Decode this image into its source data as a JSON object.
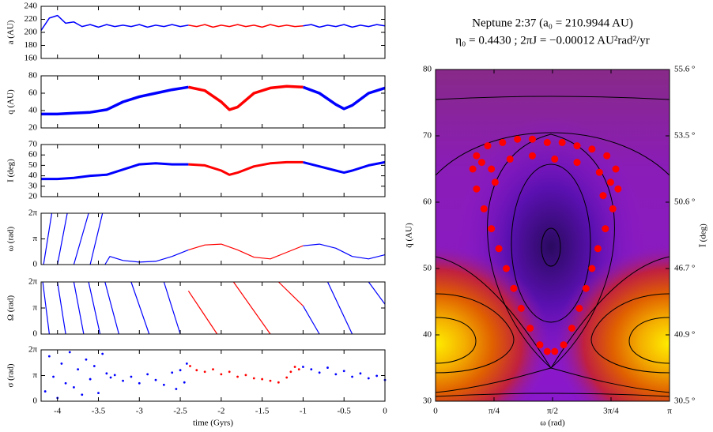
{
  "chart_data": [
    {
      "type": "line",
      "ylabel": "a (AU)",
      "xlim": [
        -4.2,
        0
      ],
      "xticks": [
        -4,
        -3.5,
        -3,
        -2.5,
        -2,
        -1.5,
        -1,
        -0.5,
        0
      ],
      "ylim": [
        160,
        240
      ],
      "yticks": [
        160,
        180,
        200,
        220,
        240
      ],
      "line_width": 1.5,
      "series": [
        {
          "color": "#0000ff",
          "x": [
            -4.2,
            -4.1,
            -4,
            -3.9,
            -3.8,
            -3.7,
            -3.6,
            -3.5,
            -3.4,
            -3.3,
            -3.2,
            -3.1,
            -3,
            -2.9,
            -2.8,
            -2.7,
            -2.6,
            -2.5,
            -2.4,
            -1.7,
            -1,
            -0.9,
            -0.8,
            -0.7,
            -0.6,
            -0.5,
            -0.4,
            -0.3,
            -0.2,
            -0.1,
            0
          ],
          "values": [
            203,
            222,
            226,
            214,
            216,
            209,
            212,
            208,
            212,
            209,
            211,
            209,
            212,
            208,
            211,
            209,
            212,
            209,
            211,
            null,
            210,
            212,
            208,
            211,
            209,
            212,
            208,
            211,
            209,
            212,
            210
          ]
        },
        {
          "color": "#ff0000",
          "x": [
            -2.4,
            -2.3,
            -2.2,
            -2.1,
            -2,
            -1.9,
            -1.8,
            -1.7,
            -1.6,
            -1.5,
            -1.4,
            -1.3,
            -1.2,
            -1.1,
            -1
          ],
          "values": [
            211,
            209,
            212,
            208,
            211,
            209,
            212,
            209,
            211,
            208,
            212,
            209,
            211,
            209,
            210
          ]
        }
      ]
    },
    {
      "type": "line",
      "ylabel": "q (AU)",
      "xlim": [
        -4.2,
        0
      ],
      "xticks": [
        -4,
        -3.5,
        -3,
        -2.5,
        -2,
        -1.5,
        -1,
        -0.5,
        0
      ],
      "ylim": [
        20,
        80
      ],
      "yticks": [
        20,
        40,
        60,
        80
      ],
      "line_width": 3.5,
      "series": [
        {
          "color": "#0000ff",
          "x": [
            -4.2,
            -4,
            -3.8,
            -3.6,
            -3.4,
            -3.2,
            -3,
            -2.8,
            -2.6,
            -2.4,
            -1.7,
            -1,
            -0.8,
            -0.6,
            -0.5,
            -0.4,
            -0.2,
            0
          ],
          "values": [
            36,
            36,
            37,
            38,
            41,
            50,
            56,
            60,
            64,
            67,
            null,
            67,
            60,
            47,
            42,
            46,
            60,
            66
          ]
        },
        {
          "color": "#ff0000",
          "x": [
            -2.4,
            -2.2,
            -2,
            -1.9,
            -1.8,
            -1.6,
            -1.4,
            -1.2,
            -1
          ],
          "values": [
            67,
            63,
            50,
            41,
            44,
            60,
            66,
            68,
            67
          ]
        }
      ]
    },
    {
      "type": "line",
      "ylabel": "I (deg)",
      "xlim": [
        -4.2,
        0
      ],
      "xticks": [
        -4,
        -3.5,
        -3,
        -2.5,
        -2,
        -1.5,
        -1,
        -0.5,
        0
      ],
      "ylim": [
        20,
        70
      ],
      "yticks": [
        20,
        30,
        40,
        50,
        60,
        70
      ],
      "line_width": 3,
      "series": [
        {
          "color": "#0000ff",
          "x": [
            -4.2,
            -4,
            -3.8,
            -3.6,
            -3.4,
            -3.2,
            -3,
            -2.8,
            -2.6,
            -2.4,
            -1.7,
            -1,
            -0.8,
            -0.6,
            -0.5,
            -0.4,
            -0.2,
            0
          ],
          "values": [
            37,
            37,
            38,
            40,
            41,
            46,
            51,
            52,
            51,
            51,
            null,
            53,
            49,
            45,
            43,
            45,
            50,
            53
          ]
        },
        {
          "color": "#ff0000",
          "x": [
            -2.4,
            -2.2,
            -2,
            -1.9,
            -1.8,
            -1.6,
            -1.4,
            -1.2,
            -1
          ],
          "values": [
            51,
            50,
            45,
            41,
            43,
            49,
            52,
            53,
            53
          ]
        }
      ]
    },
    {
      "type": "line",
      "ylabel": "ω (rad)",
      "xlim": [
        -4.2,
        0
      ],
      "xticks": [
        -4,
        -3.5,
        -3,
        -2.5,
        -2,
        -1.5,
        -1,
        -0.5,
        0
      ],
      "ylim": [
        0,
        6.28318
      ],
      "yticks": [
        0,
        {
          "value": 3.14159,
          "label": "π"
        },
        {
          "value": 6.28318,
          "label": "2π"
        }
      ],
      "line_width": 1.2,
      "series": [
        {
          "color": "#0000ff",
          "x": [
            -4.17,
            -4.07,
            -4.04,
            -4,
            -3.88,
            -3.84,
            -3.8,
            -3.62,
            -3.61,
            -3.6,
            -3.45,
            -3.44,
            -3.42,
            -3.36,
            -3.2,
            -3,
            -2.8,
            -2.6,
            -2.4,
            -1.7,
            -1,
            -0.8,
            -0.6,
            -0.4,
            -0.2,
            0
          ],
          "values": [
            0,
            6.28,
            null,
            0,
            6.28,
            null,
            0,
            6.28,
            null,
            0,
            6.28,
            null,
            0,
            1.0,
            0.5,
            0.3,
            0.4,
            1.0,
            1.8,
            null,
            2.3,
            2.5,
            2.0,
            1.0,
            0.7,
            1.2
          ]
        },
        {
          "color": "#ff0000",
          "x": [
            -2.4,
            -2.2,
            -2,
            -1.8,
            -1.6,
            -1.4,
            -1.2,
            -1
          ],
          "values": [
            1.8,
            2.4,
            2.5,
            1.8,
            0.9,
            0.7,
            1.5,
            2.3
          ]
        }
      ]
    },
    {
      "type": "line",
      "ylabel": "Ω (rad)",
      "xlim": [
        -4.2,
        0
      ],
      "xticks": [
        -4,
        -3.5,
        -3,
        -2.5,
        -2,
        -1.5,
        -1,
        -0.5,
        0
      ],
      "ylim": [
        0,
        6.28318
      ],
      "yticks": [
        0,
        {
          "value": 3.14159,
          "label": "π"
        },
        {
          "value": 6.28318,
          "label": "2π"
        }
      ],
      "line_width": 1.2,
      "series": [
        {
          "color": "#0000ff",
          "x": [
            -4.18,
            -4.1,
            -4.08,
            -4,
            -3.9,
            -3.88,
            -3.8,
            -3.68,
            -3.66,
            -3.62,
            -3.48,
            -3.46,
            -3.42,
            -3.25,
            -3.2,
            -3.1,
            -2.88,
            -2.8,
            -2.7,
            -2.5,
            -1.7,
            -1,
            -0.8,
            -0.75,
            -0.7,
            -0.4,
            -0.3,
            -0.2,
            0
          ],
          "values": [
            6.28,
            0,
            null,
            6.28,
            0,
            null,
            6.28,
            0,
            null,
            6.28,
            0,
            null,
            6.28,
            0,
            null,
            6.28,
            0,
            null,
            6.28,
            0,
            null,
            3.4,
            0,
            null,
            6.28,
            0,
            null,
            6.28,
            3.6
          ]
        },
        {
          "color": "#ff0000",
          "x": [
            -2.4,
            -2.05,
            -1.95,
            -1.85,
            -1.4,
            -1.35,
            -1.3,
            -1
          ],
          "values": [
            5.2,
            0,
            null,
            6.28,
            0,
            null,
            6.28,
            3.4
          ]
        }
      ]
    },
    {
      "type": "scatter",
      "ylabel": "σ (rad)",
      "xlabel": "time (Gyrs)",
      "xlim": [
        -4.2,
        0
      ],
      "xticks": [
        -4,
        -3.5,
        -3,
        -2.5,
        -2,
        -1.5,
        -1,
        -0.5,
        0
      ],
      "ylim": [
        0,
        6.28318
      ],
      "yticks": [
        0,
        {
          "value": 3.14159,
          "label": "π"
        },
        {
          "value": 6.28318,
          "label": "2π"
        }
      ],
      "marker_size": 1.4,
      "series": [
        {
          "color": "#0000ff",
          "x": [
            -4.15,
            -4.1,
            -4.05,
            -4,
            -3.95,
            -3.9,
            -3.85,
            -3.8,
            -3.75,
            -3.7,
            -3.65,
            -3.6,
            -3.55,
            -3.5,
            -3.45,
            -3.4,
            -3.35,
            -3.3,
            -3.2,
            -3.1,
            -3,
            -2.9,
            -2.8,
            -2.7,
            -2.6,
            -2.55,
            -2.5,
            -2.45,
            -2.42,
            -1,
            -0.9,
            -0.8,
            -0.7,
            -0.6,
            -0.5,
            -0.4,
            -0.3,
            -0.2,
            -0.1,
            0
          ],
          "values": [
            1.2,
            5.5,
            3.0,
            0.4,
            4.6,
            2.2,
            6.0,
            1.7,
            3.9,
            0.8,
            5.1,
            2.7,
            4.3,
            1.0,
            5.8,
            3.4,
            2.9,
            3.2,
            2.5,
            3.0,
            2.2,
            3.3,
            2.6,
            2.0,
            3.5,
            1.5,
            3.8,
            2.3,
            4.6,
            4.2,
            3.9,
            3.5,
            4.1,
            3.3,
            3.7,
            3.0,
            3.4,
            2.8,
            3.1,
            2.6
          ]
        },
        {
          "color": "#ff0000",
          "x": [
            -2.38,
            -2.3,
            -2.2,
            -2.1,
            -2,
            -1.9,
            -1.8,
            -1.7,
            -1.6,
            -1.5,
            -1.4,
            -1.3,
            -1.2,
            -1.15,
            -1.1,
            -1.05
          ],
          "values": [
            4.3,
            3.8,
            3.6,
            3.9,
            3.3,
            3.6,
            3.0,
            3.2,
            2.8,
            2.7,
            2.5,
            2.3,
            2.9,
            3.6,
            4.2,
            3.9
          ]
        }
      ]
    },
    {
      "type": "scatter",
      "title": "Neptune 2:37 (a₀ = 210.9944 AU)",
      "subtitle": "η₀ = 0.4430  ;  2πJ = −0.00012 AU²rad²/yr",
      "xlabel": "ω (rad)",
      "ylabel": "q̄ (AU)",
      "y2label": "Ī (deg)",
      "xlim": [
        0,
        3.14159
      ],
      "xticks": [
        0,
        {
          "value": 0.7854,
          "label": "π/4"
        },
        {
          "value": 1.5708,
          "label": "π/2"
        },
        {
          "value": 2.35619,
          "label": "3π/4"
        },
        {
          "value": 3.14159,
          "label": "π"
        }
      ],
      "ylim": [
        30,
        80
      ],
      "yticks": [
        30,
        40,
        50,
        60,
        70,
        80
      ],
      "y2ticks": [
        {
          "value": 30.5,
          "label": "30.5 °"
        },
        {
          "value": 40.9,
          "label": "40.9 °"
        },
        {
          "value": 46.7,
          "label": "46.7 °"
        },
        {
          "value": 50.6,
          "label": "50.6 °"
        },
        {
          "value": 53.5,
          "label": "53.5 °"
        },
        {
          "value": 55.6,
          "label": "55.6 °"
        }
      ],
      "marker_size": 4.5,
      "series": [
        {
          "color": "#ff0000",
          "x": [
            0.55,
            0.7,
            0.9,
            1.1,
            1.3,
            1.5,
            1.7,
            1.9,
            2.1,
            2.3,
            2.42,
            2.45,
            2.38,
            2.28,
            2.18,
            2.1,
            2.02,
            1.93,
            1.83,
            1.72,
            1.6,
            0.5,
            0.55,
            0.65,
            0.75,
            0.85,
            0.95,
            1.05,
            1.15,
            1.27,
            1.4,
            1.5,
            0.75,
            1.0,
            1.3,
            1.6,
            1.9,
            2.2,
            0.62,
            2.35,
            0.8,
            2.25
          ],
          "values": [
            67,
            68.5,
            69,
            69.5,
            69.5,
            69,
            69,
            68.5,
            68,
            67,
            65,
            62,
            59,
            56,
            53,
            50,
            47,
            44,
            41,
            38.5,
            37.5,
            65,
            62,
            59,
            56,
            53,
            50,
            47,
            44,
            41,
            38.5,
            37.5,
            65,
            66.5,
            67,
            66.5,
            66,
            64.5,
            66,
            63,
            63,
            61
          ]
        }
      ]
    }
  ]
}
